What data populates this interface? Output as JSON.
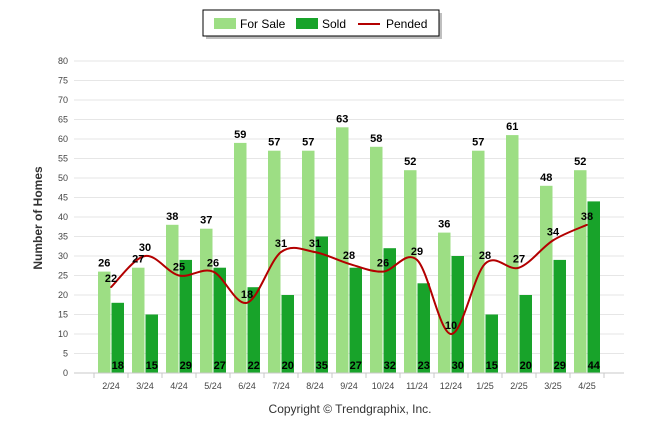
{
  "chart_data": {
    "type": "bar",
    "categories": [
      "2/24",
      "3/24",
      "4/24",
      "5/24",
      "6/24",
      "7/24",
      "8/24",
      "9/24",
      "10/24",
      "11/24",
      "12/24",
      "1/25",
      "2/25",
      "3/25",
      "4/25"
    ],
    "series": [
      {
        "name": "For Sale",
        "kind": "bar",
        "color": "#9dde84",
        "values": [
          26,
          27,
          38,
          37,
          59,
          57,
          57,
          63,
          58,
          52,
          36,
          57,
          61,
          48,
          52
        ]
      },
      {
        "name": "Sold",
        "kind": "bar",
        "color": "#18a32a",
        "values": [
          18,
          15,
          29,
          27,
          22,
          20,
          35,
          27,
          32,
          23,
          30,
          15,
          20,
          29,
          44
        ]
      },
      {
        "name": "Pended",
        "kind": "line",
        "color": "#b30000",
        "values": [
          22,
          30,
          25,
          26,
          18,
          31,
          31,
          28,
          26,
          29,
          10,
          28,
          27,
          34,
          38
        ]
      }
    ],
    "ylabel": "Number of Homes",
    "ylim": [
      0,
      80
    ],
    "yticks": [
      0,
      5,
      10,
      15,
      20,
      25,
      30,
      35,
      40,
      45,
      50,
      55,
      60,
      65,
      70,
      75,
      80
    ],
    "grid": true,
    "legend_position": "top-center",
    "footer": "Copyright © Trendgraphix, Inc."
  }
}
